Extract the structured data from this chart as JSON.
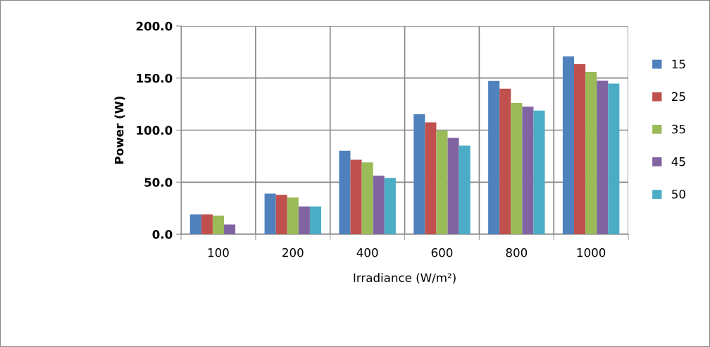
{
  "chart_data": {
    "type": "bar",
    "xlabel": "Irradiance (W/m²)",
    "ylabel": "Power (W)",
    "categories": [
      "100",
      "200",
      "400",
      "600",
      "800",
      "1000"
    ],
    "series": [
      {
        "name": "15",
        "color": "#4f81bd",
        "values": [
          19.0,
          39.1,
          80.1,
          115.2,
          147.3,
          170.8
        ]
      },
      {
        "name": "25",
        "color": "#c0504d",
        "values": [
          19.0,
          37.8,
          71.5,
          107.5,
          139.8,
          163.3
        ]
      },
      {
        "name": "35",
        "color": "#9bbb59",
        "values": [
          17.9,
          35.3,
          69.0,
          99.5,
          126.0,
          155.9
        ]
      },
      {
        "name": "45",
        "color": "#8064a2",
        "values": [
          9.3,
          26.7,
          56.3,
          92.5,
          122.6,
          147.5
        ]
      },
      {
        "name": "50",
        "color": "#4bacc6",
        "values": [
          0,
          26.7,
          54.1,
          85.1,
          118.8,
          144.8
        ]
      }
    ],
    "ylim": [
      0,
      200
    ],
    "yticks": [
      {
        "value": 0,
        "label": "0.0"
      },
      {
        "value": 50,
        "label": "50.0"
      },
      {
        "value": 100,
        "label": "100.0"
      },
      {
        "value": 150,
        "label": "150.0"
      },
      {
        "value": 200,
        "label": "200.0"
      }
    ],
    "grid": true,
    "legend": "right"
  }
}
